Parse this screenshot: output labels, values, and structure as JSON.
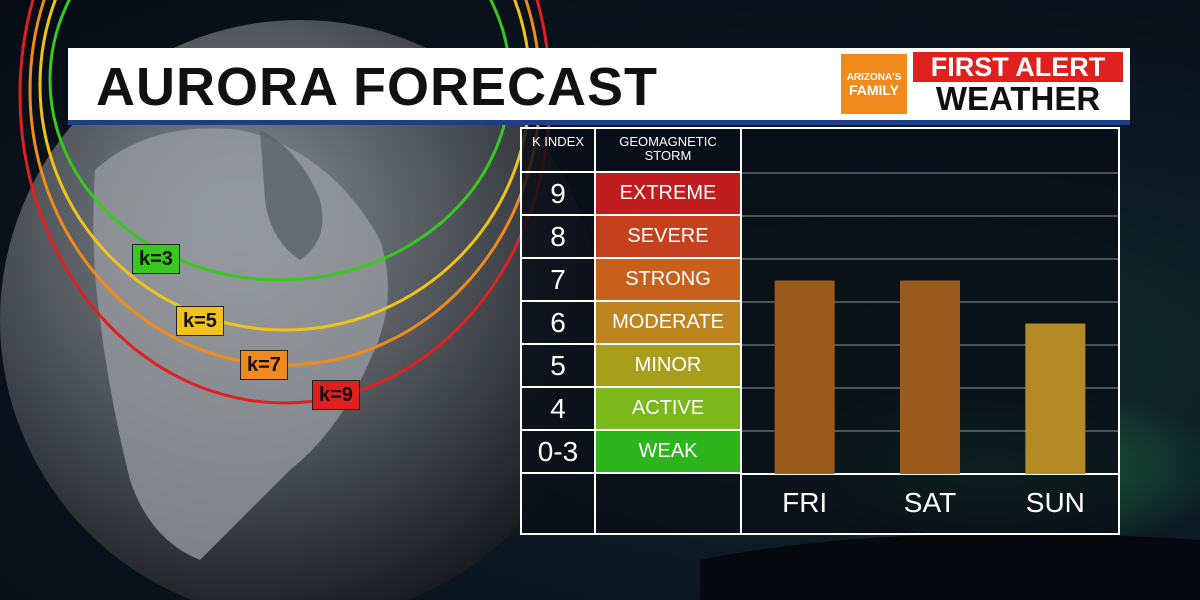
{
  "header": {
    "title": "AURORA FORECAST",
    "logo_top": "ARIZONA'S",
    "logo_bottom": "FAMILY",
    "brand_line1": "FIRST ALERT",
    "brand_line2": "WEATHER"
  },
  "map": {
    "labels": [
      {
        "text": "k=3",
        "color": "#39c81e"
      },
      {
        "text": "k=5",
        "color": "#f2c21a"
      },
      {
        "text": "k=7",
        "color": "#f08a1c"
      },
      {
        "text": "k=9",
        "color": "#e0201e"
      }
    ]
  },
  "table": {
    "k_header": "K INDEX",
    "storm_header": "GEOMAGNETIC STORM",
    "rows": [
      {
        "k": "9",
        "level": "EXTREME",
        "color": "#c01e1e"
      },
      {
        "k": "8",
        "level": "SEVERE",
        "color": "#c4401e"
      },
      {
        "k": "7",
        "level": "STRONG",
        "color": "#c8601c"
      },
      {
        "k": "6",
        "level": "MODERATE",
        "color": "#bd8420"
      },
      {
        "k": "5",
        "level": "MINOR",
        "color": "#a99e1c"
      },
      {
        "k": "4",
        "level": "ACTIVE",
        "color": "#7ab81c"
      },
      {
        "k": "0-3",
        "level": "WEAK",
        "color": "#2eb51e"
      }
    ]
  },
  "chart_data": {
    "type": "bar",
    "categories": [
      "FRI",
      "SAT",
      "SUN"
    ],
    "values": [
      7,
      7,
      6
    ],
    "ylabel": "K INDEX",
    "colors": [
      "#9a5a1c",
      "#9a5a1c",
      "#b38a24"
    ]
  }
}
